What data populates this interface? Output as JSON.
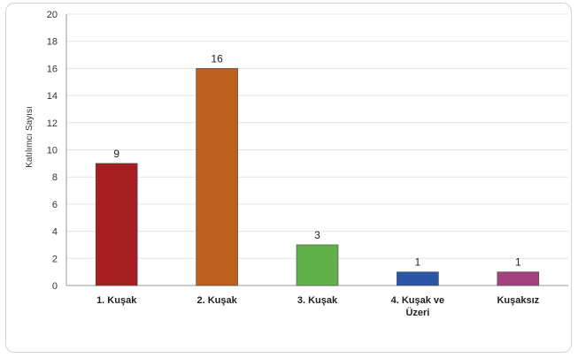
{
  "chart_data": {
    "type": "bar",
    "title": "",
    "xlabel": "",
    "ylabel": "Katılımcı Sayısı",
    "ylim": [
      0,
      20
    ],
    "yticks": [
      0,
      2,
      4,
      6,
      8,
      10,
      12,
      14,
      16,
      18,
      20
    ],
    "grid": true,
    "legend": "none",
    "categories": [
      [
        "1. Kuşak"
      ],
      [
        "2. Kuşak"
      ],
      [
        "3. Kuşak"
      ],
      [
        "4. Kuşak ve",
        "Üzeri"
      ],
      [
        "Kuşaksız"
      ]
    ],
    "values": [
      9,
      16,
      3,
      1,
      1
    ],
    "colors": [
      "#a51e22",
      "#bd5f1e",
      "#62b04a",
      "#2c55a6",
      "#a1427e"
    ]
  }
}
